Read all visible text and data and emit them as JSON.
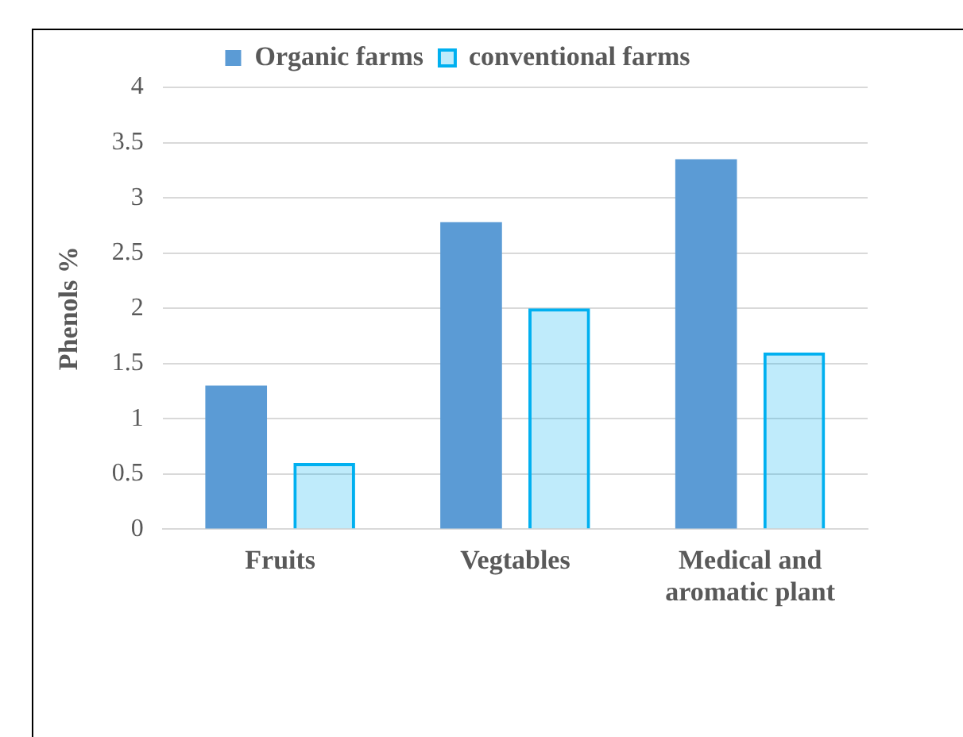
{
  "chart_data": {
    "type": "bar",
    "ylabel": "Phenols %",
    "categories": [
      "Fruits",
      "Vegtables",
      "Medical and aromatic plant"
    ],
    "series": [
      {
        "name": "Organic farms",
        "color": "#5b9bd5",
        "values": [
          1.3,
          2.78,
          3.35
        ]
      },
      {
        "name": "conventional farms",
        "color": "#00b0f0",
        "values": [
          0.6,
          2.0,
          1.6
        ]
      }
    ],
    "ylim": [
      0,
      4
    ],
    "yticks": [
      0,
      0.5,
      1,
      1.5,
      2,
      2.5,
      3,
      3.5,
      4
    ],
    "grid": "y",
    "legend": "top"
  }
}
